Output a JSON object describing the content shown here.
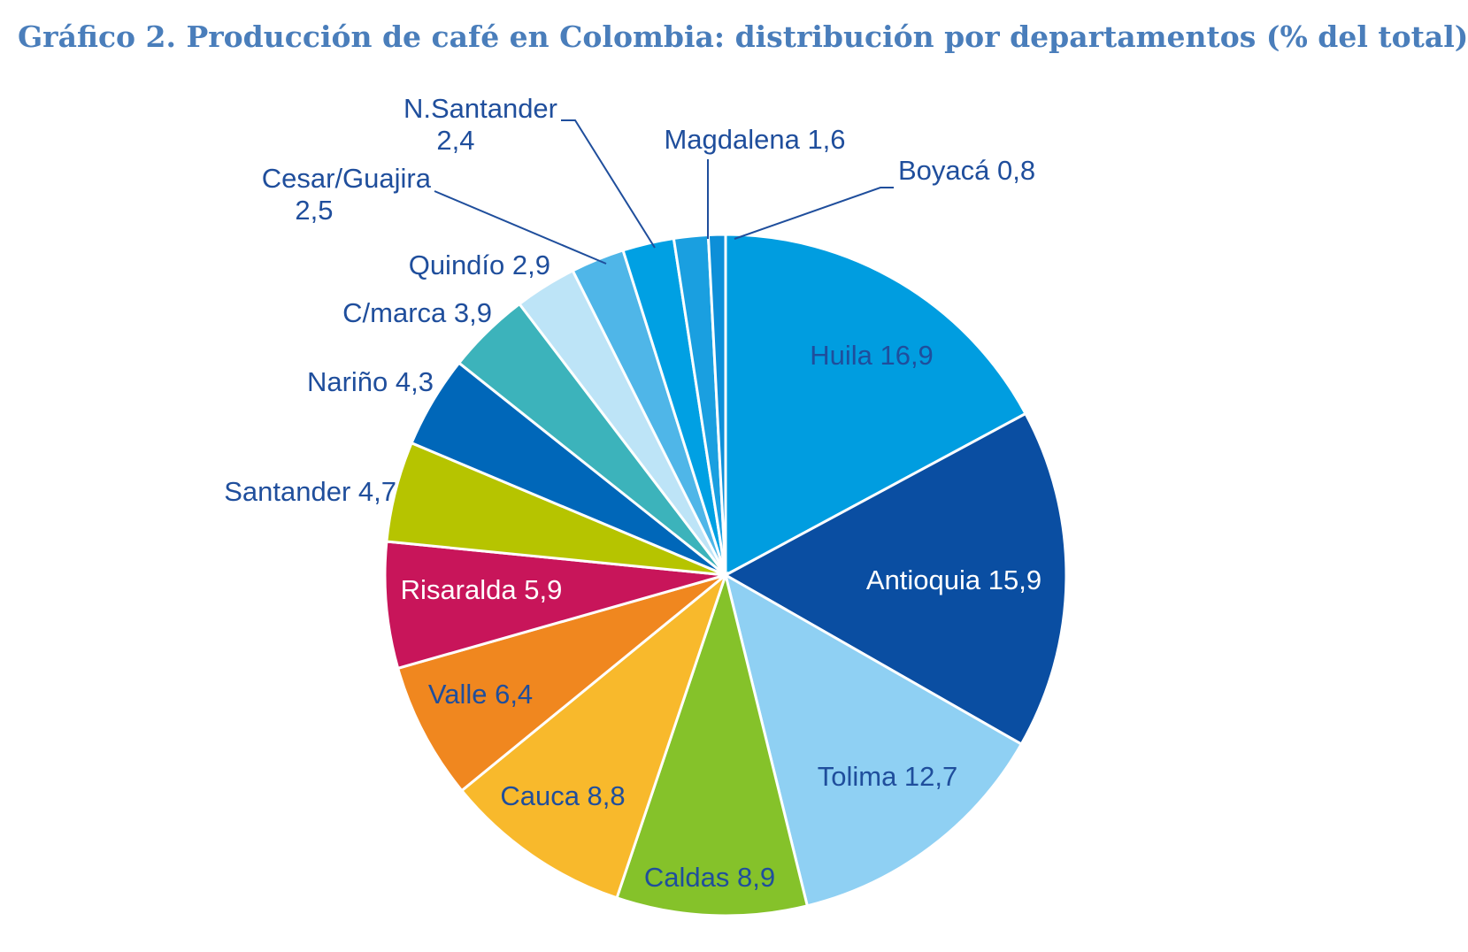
{
  "chart_data": {
    "type": "pie",
    "title": "Gráfico 2. Producción de café en Colombia: distribución por departamentos (% del total)",
    "start": "12 o'clock, clockwise",
    "slices": [
      {
        "name": "Huila",
        "value": 16.9,
        "value_label": "16,9",
        "color": "#009de0",
        "text_color": "#1f4e9c"
      },
      {
        "name": "Antioquia",
        "value": 15.9,
        "value_label": "15,9",
        "color": "#0a4ea2",
        "text_color": "#ffffff"
      },
      {
        "name": "Tolima",
        "value": 12.7,
        "value_label": "12,7",
        "color": "#8fd0f3",
        "text_color": "#1f4e9c"
      },
      {
        "name": "Caldas",
        "value": 8.9,
        "value_label": "8,9",
        "color": "#85c22a",
        "text_color": "#1f4e9c"
      },
      {
        "name": "Cauca",
        "value": 8.8,
        "value_label": "8,8",
        "color": "#f8b92c",
        "text_color": "#1f4e9c"
      },
      {
        "name": "Valle",
        "value": 6.4,
        "value_label": "6,4",
        "color": "#f0871f",
        "text_color": "#1f4e9c"
      },
      {
        "name": "Risaralda",
        "value": 5.9,
        "value_label": "5,9",
        "color": "#c8155a",
        "text_color": "#ffffff"
      },
      {
        "name": "Santander",
        "value": 4.7,
        "value_label": "4,7",
        "color": "#b6c400",
        "text_color": "#1f4e9c"
      },
      {
        "name": "Nariño",
        "value": 4.3,
        "value_label": "4,3",
        "color": "#0067b9",
        "text_color": "#1f4e9c"
      },
      {
        "name": "C/marca",
        "value": 3.9,
        "value_label": "3,9",
        "color": "#3cb3bb",
        "text_color": "#1f4e9c"
      },
      {
        "name": "Quindío",
        "value": 2.9,
        "value_label": "2,9",
        "color": "#bde4f7",
        "text_color": "#1f4e9c"
      },
      {
        "name": "Cesar/Guajira",
        "value": 2.5,
        "value_label": "2,5",
        "color": "#4fb6e8",
        "text_color": "#1f4e9c"
      },
      {
        "name": "N.Santander",
        "value": 2.4,
        "value_label": "2,4",
        "color": "#00a0e3",
        "text_color": "#1f4e9c"
      },
      {
        "name": "Magdalena",
        "value": 1.6,
        "value_label": "1,6",
        "color": "#1a9fe0",
        "text_color": "#1f4e9c"
      },
      {
        "name": "Boyacá",
        "value": 0.8,
        "value_label": "0,8",
        "color": "#0d8fd8",
        "text_color": "#1f4e9c"
      }
    ]
  }
}
